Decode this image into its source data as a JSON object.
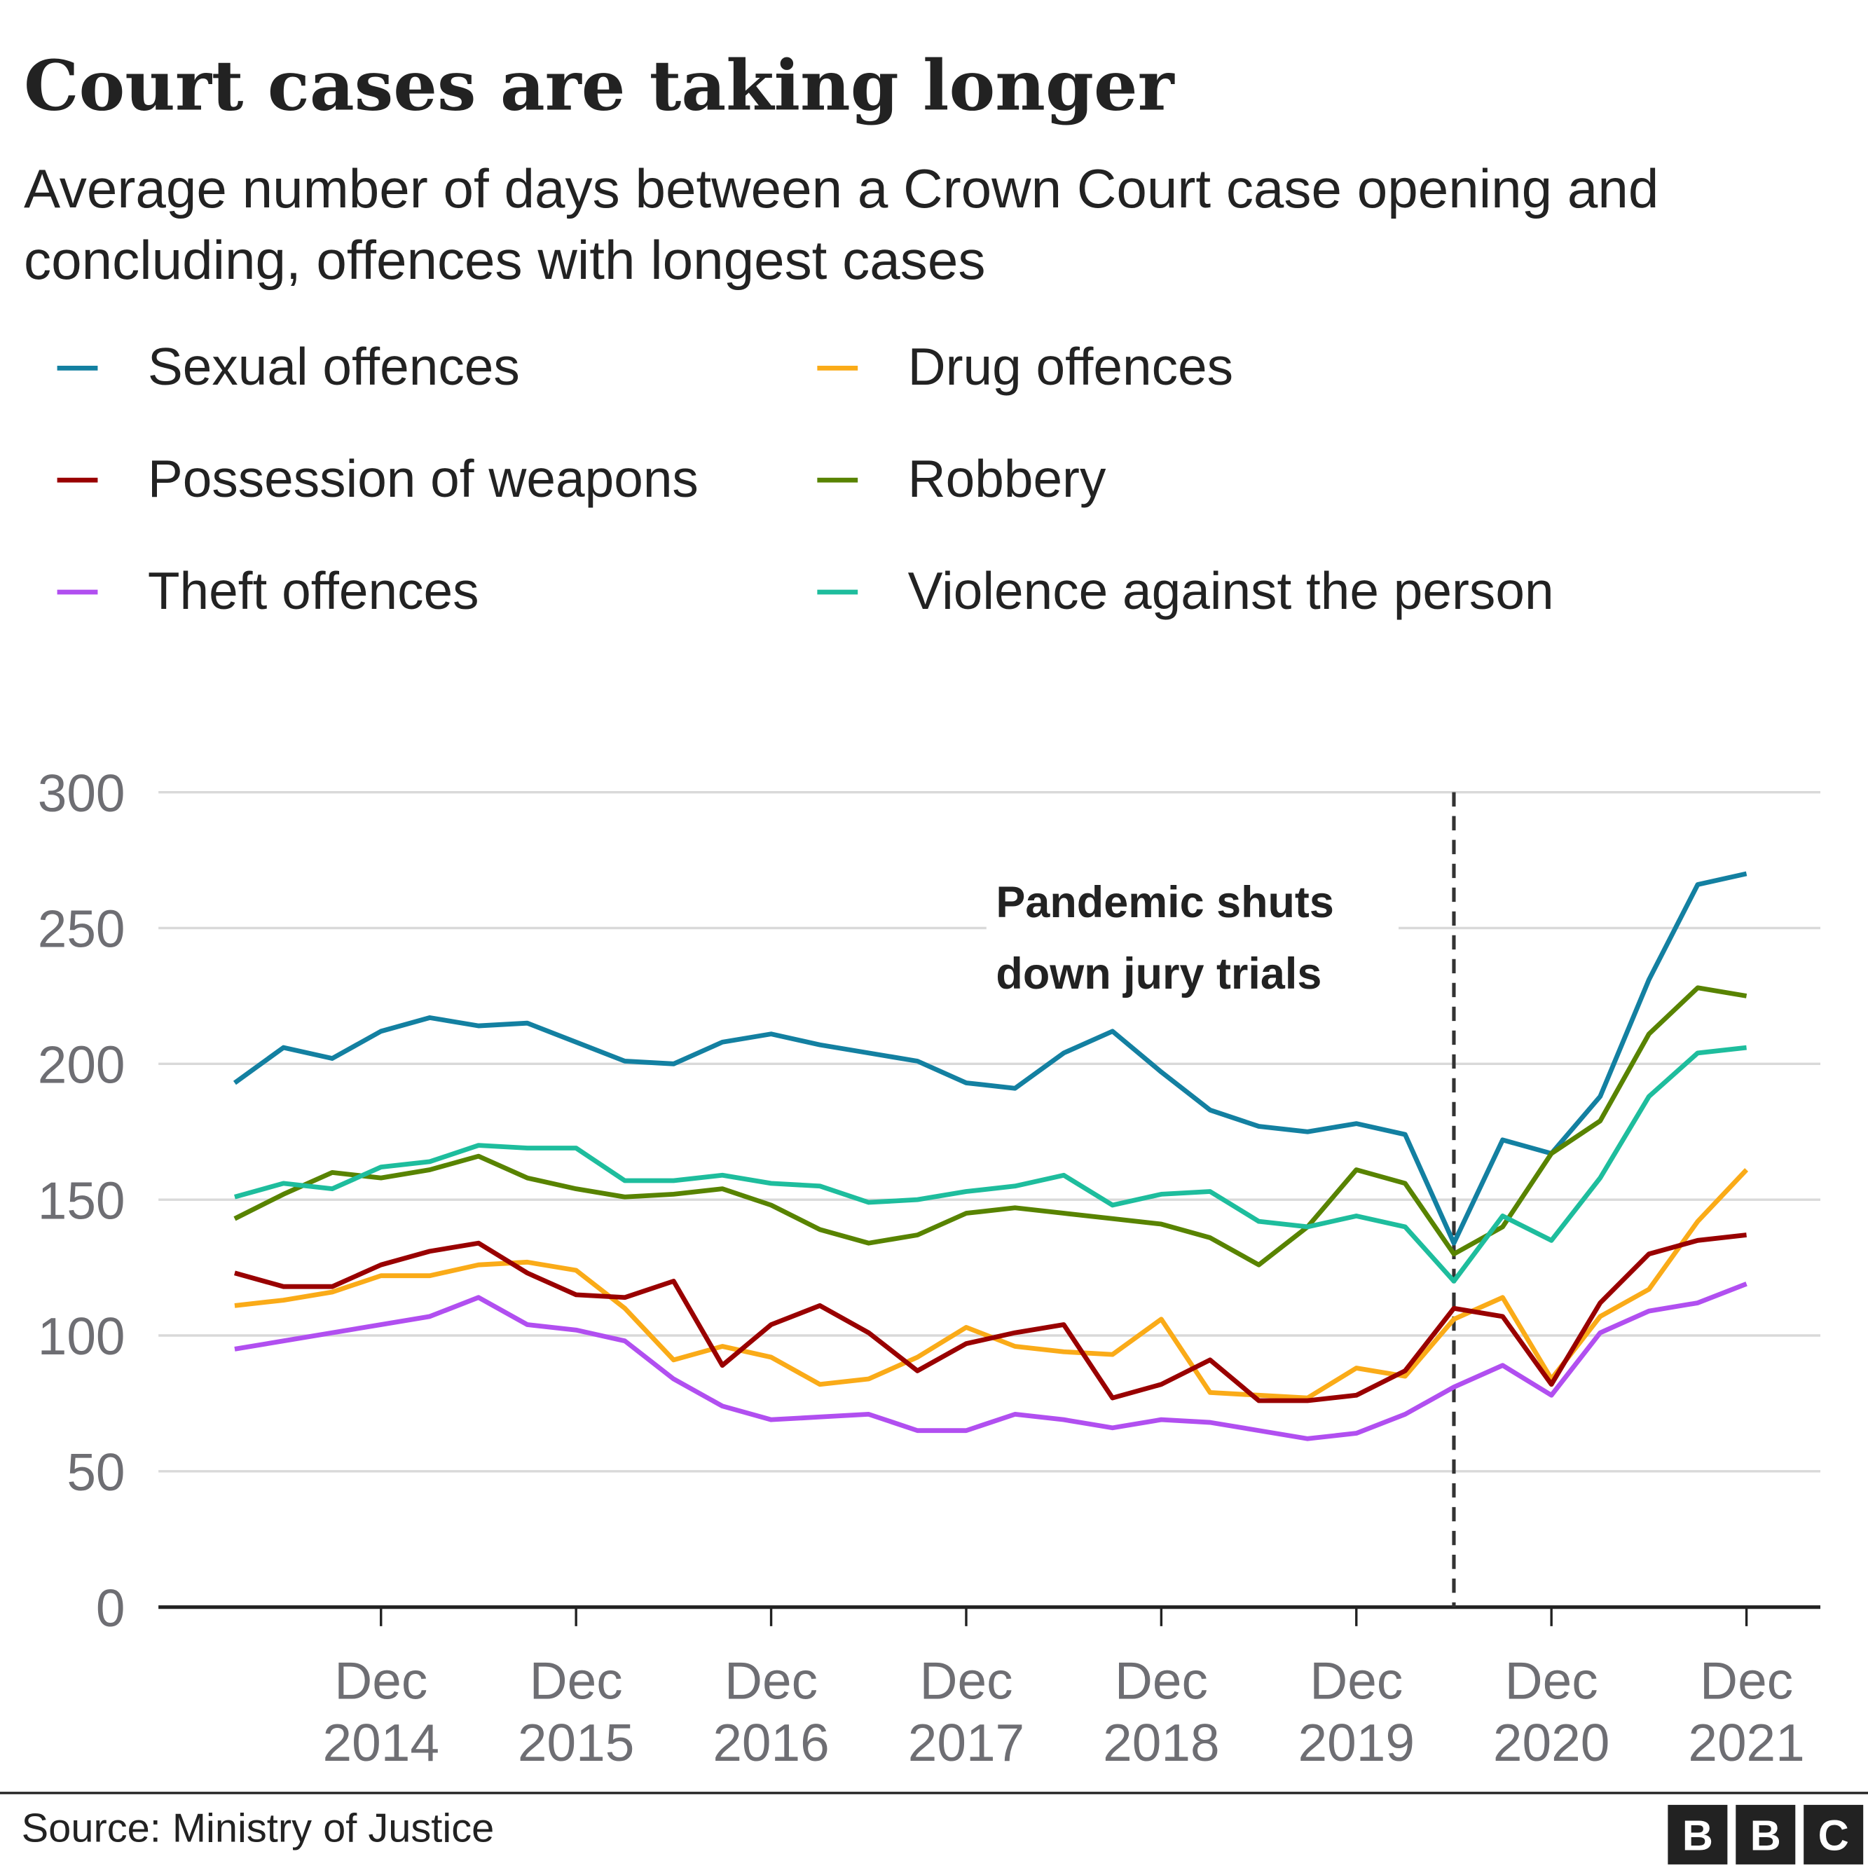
{
  "chart_data": {
    "type": "line",
    "title": "Court cases are taking longer",
    "subtitle": "Average number of days between a Crown Court case opening and concluding, offences with longest cases",
    "categories": [
      null,
      null,
      null,
      "Dec 2014",
      null,
      null,
      null,
      "Dec 2015",
      null,
      null,
      null,
      "Dec 2016",
      null,
      null,
      null,
      "Dec 2017",
      null,
      null,
      null,
      "Dec 2018",
      null,
      null,
      null,
      "Dec 2019",
      null,
      null,
      null,
      "Dec 2020",
      null,
      null,
      null,
      "Dec 2021"
    ],
    "series": [
      {
        "name": "Sexual offences",
        "color": "#1380a1",
        "values": [
          193,
          206,
          202,
          212,
          217,
          214,
          215,
          208,
          201,
          200,
          208,
          211,
          207,
          204,
          201,
          193,
          191,
          204,
          212,
          197,
          183,
          177,
          175,
          178,
          174,
          134,
          172,
          167,
          188,
          231,
          266,
          270
        ]
      },
      {
        "name": "Drug offences",
        "color": "#faab18",
        "values": [
          111,
          113,
          116,
          122,
          122,
          126,
          127,
          124,
          110,
          91,
          96,
          92,
          82,
          84,
          92,
          103,
          96,
          94,
          93,
          106,
          79,
          78,
          77,
          88,
          85,
          106,
          114,
          84,
          107,
          117,
          142,
          161
        ]
      },
      {
        "name": "Possession of weapons",
        "color": "#990000",
        "values": [
          123,
          118,
          118,
          126,
          131,
          134,
          123,
          115,
          114,
          120,
          89,
          104,
          111,
          101,
          87,
          97,
          101,
          104,
          77,
          82,
          91,
          76,
          76,
          78,
          87,
          110,
          107,
          82,
          112,
          130,
          135,
          137
        ]
      },
      {
        "name": "Robbery",
        "color": "#588300",
        "values": [
          143,
          152,
          160,
          158,
          161,
          166,
          158,
          154,
          151,
          152,
          154,
          148,
          139,
          134,
          137,
          145,
          147,
          145,
          143,
          141,
          136,
          126,
          140,
          161,
          156,
          130,
          140,
          167,
          179,
          211,
          228,
          225
        ]
      },
      {
        "name": "Theft offences",
        "color": "#b14ff0",
        "values": [
          95,
          98,
          101,
          104,
          107,
          114,
          104,
          102,
          98,
          84,
          74,
          69,
          70,
          71,
          65,
          65,
          71,
          69,
          66,
          69,
          68,
          65,
          62,
          64,
          71,
          81,
          89,
          78,
          101,
          109,
          112,
          119
        ]
      },
      {
        "name": "Violence against the person",
        "color": "#1ebd9d",
        "values": [
          151,
          156,
          154,
          162,
          164,
          170,
          169,
          169,
          157,
          157,
          159,
          156,
          155,
          149,
          150,
          153,
          155,
          159,
          148,
          152,
          153,
          142,
          140,
          144,
          140,
          120,
          144,
          135,
          158,
          188,
          204,
          206
        ]
      }
    ],
    "ylim": [
      0,
      300
    ],
    "yticks": [
      0,
      50,
      100,
      150,
      200,
      250,
      300
    ],
    "grid": true,
    "annotation": {
      "text": "Pandemic shuts down jury trials",
      "category_index": 25
    },
    "source": "Source: Ministry of Justice",
    "logo": [
      "B",
      "B",
      "C"
    ]
  }
}
